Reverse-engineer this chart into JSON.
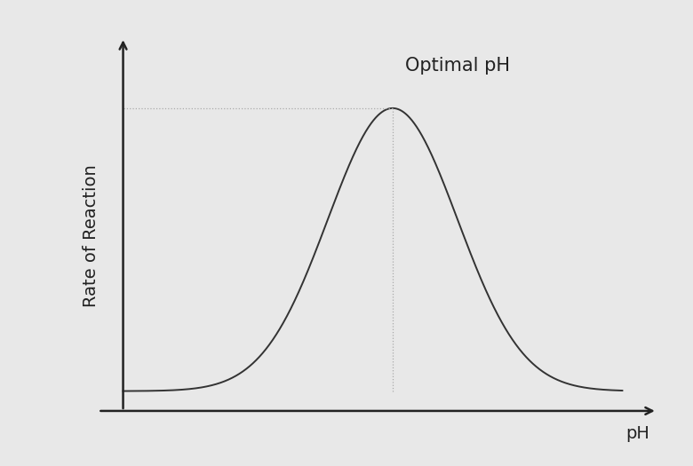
{
  "background_color": "#e8e8e8",
  "curve_color": "#333333",
  "dashed_line_color": "#aaaaaa",
  "ylabel": "Rate of Reaction",
  "xlabel": "pH",
  "annotation_text": "Optimal pH",
  "bell_mean": 0.54,
  "bell_std": 0.13,
  "axis_color": "#222222",
  "curve_linewidth": 1.4,
  "dashed_linewidth": 0.9,
  "annotation_fontsize": 15,
  "label_fontsize": 14
}
